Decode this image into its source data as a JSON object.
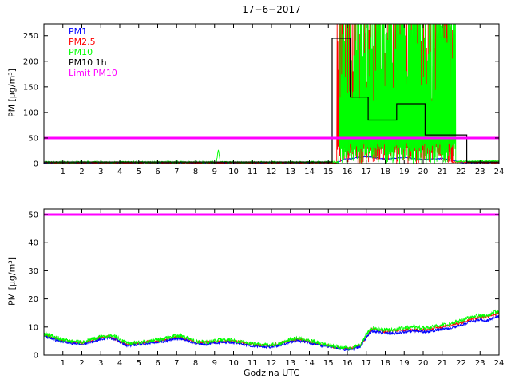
{
  "figure": {
    "background": "#ffffff"
  },
  "chart_data": [
    {
      "type": "line",
      "title": "17−6−2017",
      "xlabel": "",
      "ylabel": "PM [µg/m³]",
      "xlim": [
        0,
        24
      ],
      "ylim": [
        0,
        273
      ],
      "xticks": [
        1,
        2,
        3,
        4,
        5,
        6,
        7,
        8,
        9,
        10,
        11,
        12,
        13,
        14,
        15,
        16,
        17,
        18,
        19,
        20,
        21,
        22,
        23,
        24
      ],
      "yticks": [
        0,
        50,
        100,
        150,
        200,
        250
      ],
      "grid": false,
      "legend_position": "top-left-inside",
      "legend": [
        {
          "label": "PM1",
          "color": "#0000ff"
        },
        {
          "label": "PM2.5",
          "color": "#ff0000"
        },
        {
          "label": "PM10",
          "color": "#00ff00"
        },
        {
          "label": "PM10 1h",
          "color": "#000000"
        },
        {
          "label": "Limit PM10",
          "color": "#ff00ff"
        }
      ],
      "limit_line": {
        "name": "Limit PM10",
        "y": 50,
        "color": "#ff00ff",
        "width": 3
      },
      "series": [
        {
          "name": "PM1",
          "color": "#0000ff",
          "style": "noisy-line",
          "noise": 1.0,
          "keypoints": [
            [
              0,
              1.5
            ],
            [
              15.4,
              1.5
            ],
            [
              15.8,
              8
            ],
            [
              17,
              14
            ],
            [
              18,
              9
            ],
            [
              19,
              12
            ],
            [
              20,
              8
            ],
            [
              21,
              10
            ],
            [
              21.7,
              5
            ],
            [
              22,
              2
            ],
            [
              24,
              2
            ]
          ]
        },
        {
          "name": "PM2.5",
          "color": "#ff0000",
          "style": "noisy-line",
          "noise": 1.2,
          "keypoints": [
            [
              0,
              2
            ],
            [
              15.4,
              2
            ],
            [
              21.7,
              3
            ],
            [
              24,
              2
            ]
          ],
          "event": {
            "start": 15.45,
            "end": 21.55,
            "low_max": 35,
            "full_prob": 0.45
          }
        },
        {
          "name": "PM10",
          "color": "#00ff00",
          "style": "noisy-line",
          "noise": 1.5,
          "keypoints": [
            [
              0,
              3
            ],
            [
              9.1,
              3
            ],
            [
              9.2,
              28
            ],
            [
              9.3,
              3
            ],
            [
              15.5,
              3
            ],
            [
              21.8,
              4
            ],
            [
              24,
              5
            ]
          ],
          "event": {
            "start": 15.55,
            "end": 21.7,
            "low_max": 40,
            "full_prob": 0.6
          }
        },
        {
          "name": "PM10 1h",
          "color": "#000000",
          "style": "step",
          "points": [
            [
              0,
              3
            ],
            [
              15.2,
              3
            ],
            [
              15.2,
              245
            ],
            [
              16.15,
              245
            ],
            [
              16.15,
              130
            ],
            [
              17.1,
              130
            ],
            [
              17.1,
              85
            ],
            [
              18.6,
              85
            ],
            [
              18.6,
              117
            ],
            [
              20.1,
              117
            ],
            [
              20.1,
              56
            ],
            [
              22.3,
              56
            ],
            [
              22.3,
              3
            ],
            [
              24,
              3
            ]
          ]
        }
      ]
    },
    {
      "type": "line",
      "title": "",
      "xlabel": "Godzina UTC",
      "ylabel": "PM [µg/m³]",
      "xlim": [
        0,
        24
      ],
      "ylim": [
        0,
        52
      ],
      "xticks": [
        1,
        2,
        3,
        4,
        5,
        6,
        7,
        8,
        9,
        10,
        11,
        12,
        13,
        14,
        15,
        16,
        17,
        18,
        19,
        20,
        21,
        22,
        23,
        24
      ],
      "yticks": [
        0,
        10,
        20,
        30,
        40,
        50
      ],
      "grid": false,
      "limit_line": {
        "name": "Limit PM10",
        "y": 50,
        "color": "#ff00ff",
        "width": 3
      },
      "series": [
        {
          "name": "PM2.5",
          "color": "#ff0000",
          "style": "noisy-line",
          "noise": 0.5,
          "keypoints": [
            [
              0,
              7.1
            ],
            [
              1,
              5.2
            ],
            [
              2,
              4.3
            ],
            [
              3,
              6.2
            ],
            [
              3.4,
              6.7
            ],
            [
              4.4,
              3.8
            ],
            [
              5,
              4.2
            ],
            [
              6,
              5.2
            ],
            [
              7.1,
              6.5
            ],
            [
              8,
              4.5
            ],
            [
              9,
              4.7
            ],
            [
              10,
              4.9
            ],
            [
              11,
              3.8
            ],
            [
              12,
              3.3
            ],
            [
              13,
              5.2
            ],
            [
              13.4,
              5.7
            ],
            [
              14.7,
              3.7
            ],
            [
              15.7,
              2.4
            ],
            [
              16,
              2.1
            ],
            [
              16.7,
              3.5
            ],
            [
              17.3,
              9.2
            ],
            [
              18,
              8.4
            ],
            [
              19,
              9.0
            ],
            [
              20,
              9.0
            ],
            [
              21,
              9.9
            ],
            [
              22,
              11.5
            ],
            [
              22.5,
              12.8
            ],
            [
              23,
              13.4
            ],
            [
              23.6,
              13.9
            ],
            [
              24,
              14.9
            ]
          ]
        },
        {
          "name": "PM1",
          "color": "#0000ff",
          "style": "noisy-line",
          "noise": 0.5,
          "keypoints": [
            [
              0,
              6.6
            ],
            [
              0.3,
              6.0
            ],
            [
              0.7,
              5.3
            ],
            [
              1,
              4.8
            ],
            [
              1.5,
              4.2
            ],
            [
              2,
              3.9
            ],
            [
              2.5,
              4.6
            ],
            [
              3,
              5.7
            ],
            [
              3.4,
              6.2
            ],
            [
              3.8,
              5.7
            ],
            [
              4.1,
              4.4
            ],
            [
              4.4,
              3.4
            ],
            [
              5,
              3.8
            ],
            [
              5.6,
              4.3
            ],
            [
              6.2,
              4.8
            ],
            [
              6.8,
              5.6
            ],
            [
              7.1,
              6.0
            ],
            [
              7.5,
              5.4
            ],
            [
              8,
              4.1
            ],
            [
              8.5,
              3.8
            ],
            [
              9,
              4.3
            ],
            [
              9.5,
              4.7
            ],
            [
              10,
              4.5
            ],
            [
              10.5,
              3.8
            ],
            [
              11,
              3.4
            ],
            [
              11.5,
              3.0
            ],
            [
              12,
              3.0
            ],
            [
              12.5,
              3.6
            ],
            [
              13,
              4.7
            ],
            [
              13.4,
              5.2
            ],
            [
              13.8,
              4.7
            ],
            [
              14.2,
              4.1
            ],
            [
              14.7,
              3.3
            ],
            [
              15.2,
              2.8
            ],
            [
              15.7,
              2.1
            ],
            [
              16,
              1.9
            ],
            [
              16.3,
              2.1
            ],
            [
              16.7,
              3.1
            ],
            [
              17,
              6.4
            ],
            [
              17.3,
              8.5
            ],
            [
              17.6,
              8.2
            ],
            [
              18,
              7.8
            ],
            [
              18.5,
              7.8
            ],
            [
              19,
              8.3
            ],
            [
              19.5,
              8.8
            ],
            [
              20,
              8.3
            ],
            [
              20.5,
              8.7
            ],
            [
              21,
              9.2
            ],
            [
              21.5,
              9.8
            ],
            [
              22,
              10.7
            ],
            [
              22.5,
              12.0
            ],
            [
              23,
              12.6
            ],
            [
              23.3,
              12.0
            ],
            [
              23.6,
              13.0
            ],
            [
              24,
              14.0
            ]
          ]
        },
        {
          "name": "PM10",
          "color": "#00ff00",
          "style": "noisy-line",
          "noise": 0.7,
          "keypoints": [
            [
              0,
              7.6
            ],
            [
              0.3,
              7.0
            ],
            [
              0.7,
              6.2
            ],
            [
              1,
              5.6
            ],
            [
              1.5,
              4.9
            ],
            [
              2,
              4.6
            ],
            [
              2.5,
              5.4
            ],
            [
              3,
              6.6
            ],
            [
              3.4,
              7.1
            ],
            [
              3.8,
              6.6
            ],
            [
              4.1,
              5.2
            ],
            [
              4.4,
              4.1
            ],
            [
              5,
              4.5
            ],
            [
              5.6,
              5.1
            ],
            [
              6.2,
              5.7
            ],
            [
              6.8,
              6.6
            ],
            [
              7.1,
              7.0
            ],
            [
              7.5,
              6.4
            ],
            [
              8,
              4.9
            ],
            [
              8.5,
              4.6
            ],
            [
              9,
              5.1
            ],
            [
              9.5,
              5.6
            ],
            [
              10,
              5.3
            ],
            [
              10.5,
              4.6
            ],
            [
              11,
              4.1
            ],
            [
              11.5,
              3.7
            ],
            [
              12,
              3.6
            ],
            [
              12.5,
              4.3
            ],
            [
              13,
              5.6
            ],
            [
              13.4,
              6.1
            ],
            [
              13.8,
              5.6
            ],
            [
              14.2,
              4.9
            ],
            [
              14.7,
              4.0
            ],
            [
              15.2,
              3.4
            ],
            [
              15.7,
              2.6
            ],
            [
              16,
              2.3
            ],
            [
              16.3,
              2.6
            ],
            [
              16.7,
              3.8
            ],
            [
              17,
              7.5
            ],
            [
              17.3,
              9.8
            ],
            [
              17.6,
              9.4
            ],
            [
              18,
              9.0
            ],
            [
              18.5,
              9.0
            ],
            [
              19,
              9.6
            ],
            [
              19.5,
              10.1
            ],
            [
              20,
              9.6
            ],
            [
              20.5,
              10.0
            ],
            [
              21,
              10.6
            ],
            [
              21.5,
              11.2
            ],
            [
              22,
              12.2
            ],
            [
              22.5,
              13.6
            ],
            [
              23,
              14.2
            ],
            [
              23.3,
              13.6
            ],
            [
              23.6,
              14.8
            ],
            [
              24,
              15.8
            ]
          ]
        }
      ]
    }
  ]
}
